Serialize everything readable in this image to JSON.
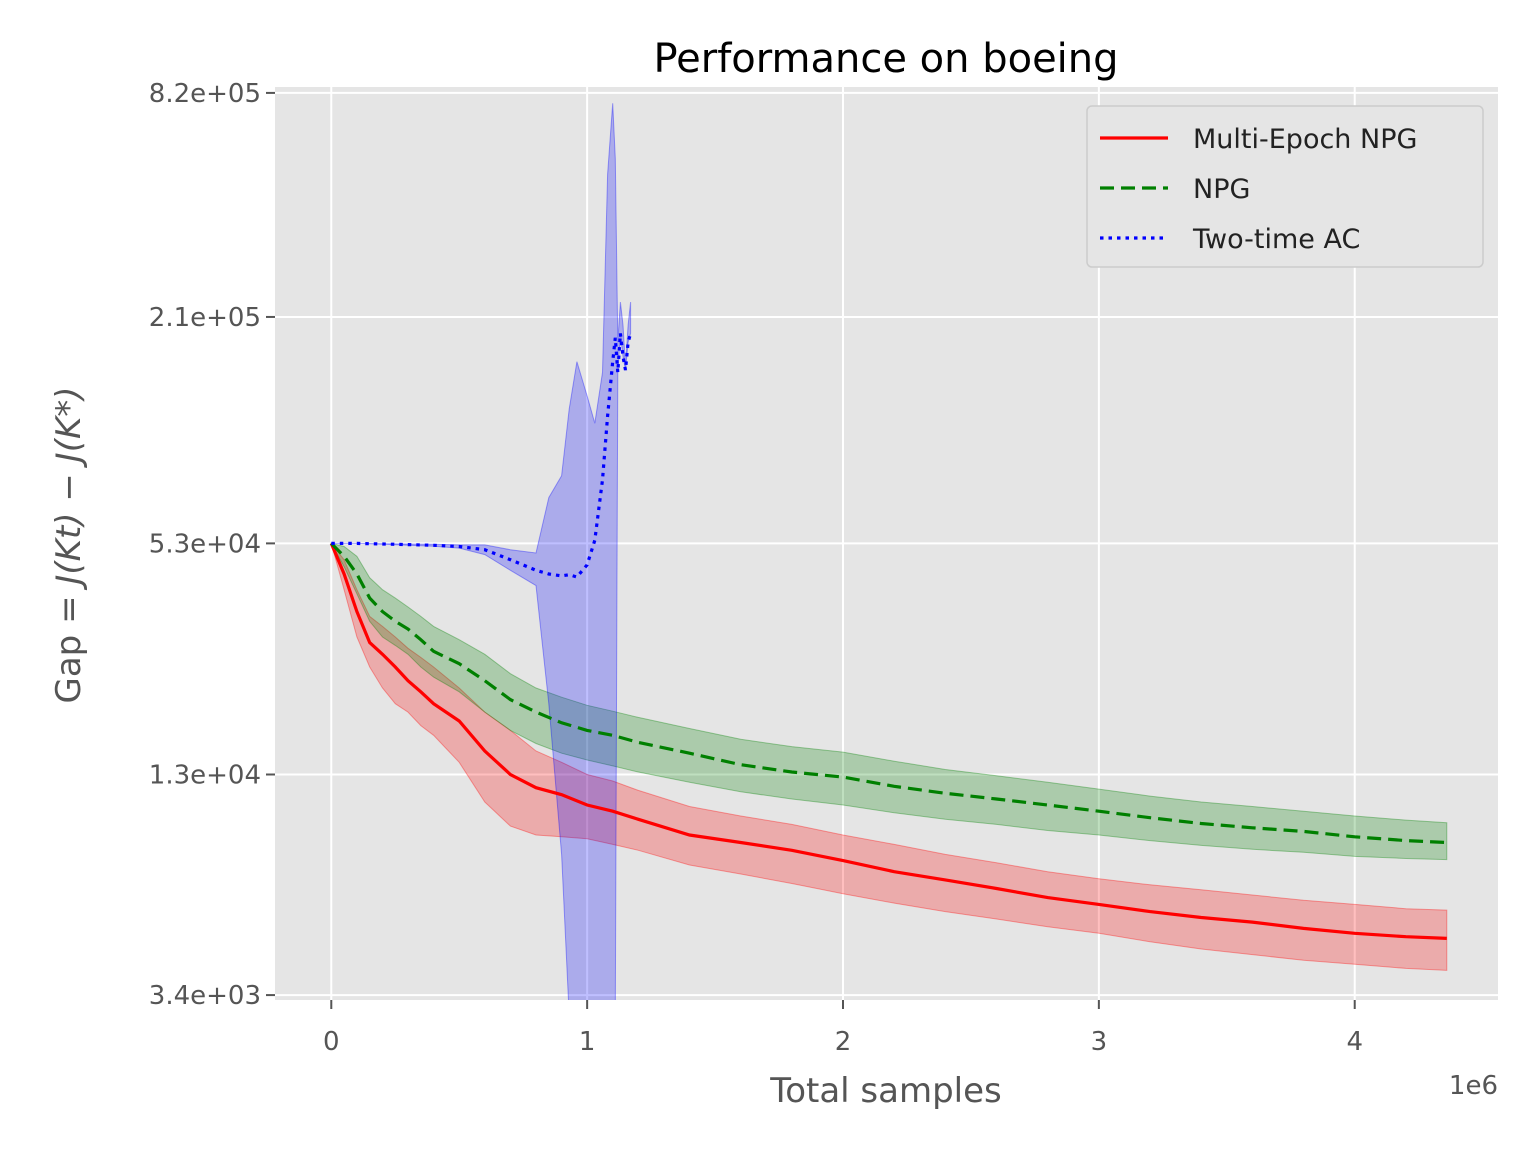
{
  "chart_data": {
    "type": "line",
    "title": "Performance on boeing",
    "xlabel": "Total samples",
    "ylabel_prefix": "Gap = ",
    "ylabel_math": "J(Kt) − J(K*)",
    "x_offset_label": "1e6",
    "x_scale_exponent": 6,
    "xlim": [
      -0.22,
      4.56
    ],
    "ylim": [
      3300,
      850000
    ],
    "y_scale": "log",
    "x_ticks": [
      0,
      1,
      2,
      3,
      4
    ],
    "x_tick_labels": [
      "0",
      "1",
      "2",
      "3",
      "4"
    ],
    "y_ticks": [
      3400,
      13000,
      53000,
      210000,
      820000
    ],
    "y_tick_labels": [
      "3.4e+03",
      "1.3e+04",
      "5.3e+04",
      "2.1e+05",
      "8.2e+05"
    ],
    "grid": true,
    "background": "#e5e5e5",
    "legend_position": "top-right",
    "series": [
      {
        "name": "Multi-Epoch NPG",
        "color": "#ff0000",
        "linestyle": "solid",
        "x": [
          0,
          0.05,
          0.1,
          0.15,
          0.2,
          0.25,
          0.3,
          0.35,
          0.4,
          0.5,
          0.6,
          0.7,
          0.8,
          0.9,
          1.0,
          1.1,
          1.2,
          1.4,
          1.6,
          1.8,
          2.0,
          2.2,
          2.4,
          2.6,
          2.8,
          3.0,
          3.2,
          3.4,
          3.6,
          3.8,
          4.0,
          4.2,
          4.36
        ],
        "y": [
          53000,
          44000,
          35000,
          29000,
          27000,
          25000,
          23000,
          21500,
          20000,
          18000,
          15000,
          13000,
          12000,
          11500,
          10800,
          10400,
          9900,
          9000,
          8600,
          8200,
          7700,
          7200,
          6850,
          6500,
          6150,
          5900,
          5650,
          5450,
          5300,
          5100,
          4950,
          4850,
          4800
        ],
        "lower": [
          53000,
          40000,
          30000,
          25000,
          22000,
          20000,
          19000,
          17500,
          16500,
          14000,
          11000,
          9500,
          9000,
          8900,
          8800,
          8500,
          8200,
          7500,
          7100,
          6700,
          6300,
          5950,
          5650,
          5400,
          5150,
          4950,
          4700,
          4500,
          4350,
          4200,
          4100,
          4000,
          3950
        ],
        "upper": [
          53000,
          48000,
          40000,
          34000,
          32000,
          30000,
          28000,
          26500,
          25000,
          22000,
          19000,
          17000,
          15000,
          14000,
          13000,
          12500,
          11800,
          10700,
          10100,
          9600,
          9000,
          8500,
          8000,
          7600,
          7200,
          6900,
          6650,
          6450,
          6250,
          6050,
          5900,
          5750,
          5700
        ]
      },
      {
        "name": "NPG",
        "color": "#008000",
        "linestyle": "dashed",
        "x": [
          0,
          0.05,
          0.1,
          0.15,
          0.2,
          0.25,
          0.3,
          0.35,
          0.4,
          0.5,
          0.6,
          0.7,
          0.8,
          0.9,
          1.0,
          1.1,
          1.2,
          1.4,
          1.6,
          1.8,
          2.0,
          2.2,
          2.4,
          2.6,
          2.8,
          3.0,
          3.2,
          3.4,
          3.6,
          3.8,
          4.0,
          4.2,
          4.36
        ],
        "y": [
          53000,
          49000,
          44000,
          38000,
          35000,
          33000,
          31500,
          29500,
          27500,
          25500,
          23000,
          20500,
          19000,
          17800,
          17000,
          16500,
          15800,
          14800,
          13800,
          13200,
          12800,
          12100,
          11600,
          11200,
          10800,
          10400,
          10000,
          9650,
          9400,
          9200,
          8900,
          8700,
          8600
        ],
        "lower": [
          53000,
          46000,
          39000,
          33000,
          30000,
          28500,
          27000,
          25000,
          23500,
          21500,
          19000,
          17000,
          15700,
          14800,
          14200,
          13700,
          13200,
          12400,
          11700,
          11200,
          10800,
          10300,
          9900,
          9600,
          9250,
          9000,
          8700,
          8450,
          8250,
          8100,
          7900,
          7800,
          7750
        ],
        "upper": [
          53000,
          52000,
          49000,
          43000,
          40000,
          38000,
          36000,
          34000,
          32000,
          29500,
          27000,
          24000,
          22000,
          20800,
          19800,
          19100,
          18400,
          17200,
          16100,
          15400,
          14900,
          14100,
          13400,
          12900,
          12400,
          11900,
          11400,
          11000,
          10700,
          10400,
          10100,
          9850,
          9700
        ]
      },
      {
        "name": "Two-time AC",
        "color": "#0000ff",
        "linestyle": "dotted",
        "x": [
          0,
          0.1,
          0.2,
          0.3,
          0.4,
          0.5,
          0.6,
          0.7,
          0.8,
          0.85,
          0.9,
          0.93,
          0.96,
          1.0,
          1.03,
          1.06,
          1.08,
          1.1,
          1.11,
          1.12,
          1.13,
          1.14,
          1.15,
          1.16,
          1.17
        ],
        "y": [
          53000,
          53000,
          52800,
          52600,
          52400,
          52000,
          51000,
          48000,
          45000,
          44000,
          43500,
          43800,
          43200,
          46500,
          54000,
          78000,
          115000,
          160000,
          185000,
          150000,
          190000,
          165000,
          152000,
          180000,
          190000
        ],
        "lower": [
          53000,
          53000,
          52700,
          52400,
          52100,
          51500,
          49500,
          45000,
          41000,
          20000,
          8000,
          3000,
          3000,
          3000,
          3000,
          3000,
          3000,
          3000,
          3000,
          null,
          null,
          null,
          null,
          null,
          null
        ],
        "upper": [
          53000,
          53000,
          52900,
          52800,
          52700,
          52500,
          52500,
          51000,
          50000,
          70000,
          80000,
          120000,
          160000,
          130000,
          110000,
          150000,
          500000,
          770000,
          550000,
          180000,
          230000,
          200000,
          155000,
          200000,
          230000
        ]
      }
    ]
  }
}
